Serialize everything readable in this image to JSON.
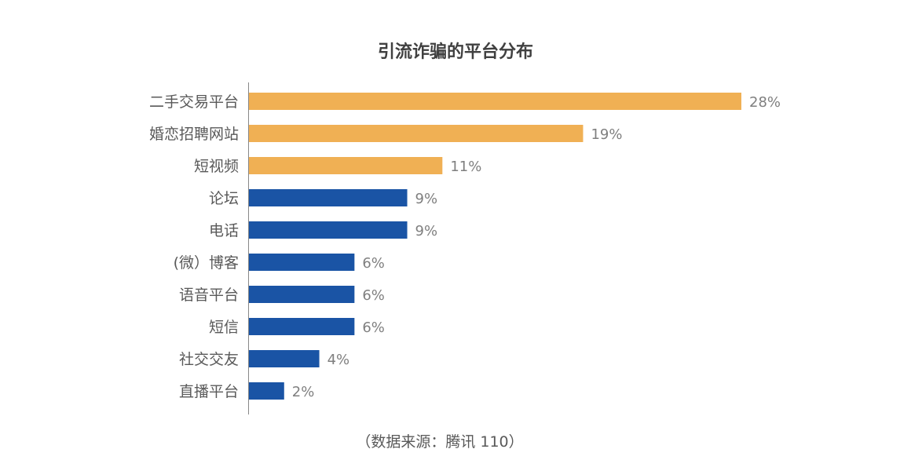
{
  "chart_data": {
    "type": "bar",
    "orientation": "horizontal",
    "title": "引流诈骗的平台分布",
    "source_note": "（数据来源：腾讯 110）",
    "categories": [
      "二手交易平台",
      "婚恋招聘网站",
      "短视频",
      "论坛",
      "电话",
      "(微）博客",
      "语音平台",
      "短信",
      "社交交友",
      "直播平台"
    ],
    "values": [
      28,
      19,
      11,
      9,
      9,
      6,
      6,
      6,
      4,
      2
    ],
    "value_labels": [
      "28%",
      "19%",
      "11%",
      "9%",
      "9%",
      "6%",
      "6%",
      "6%",
      "4%",
      "2%"
    ],
    "unit": "%",
    "colors": [
      "#F0B054",
      "#F0B054",
      "#F0B054",
      "#1A54A5",
      "#1A54A5",
      "#1A54A5",
      "#1A54A5",
      "#1A54A5",
      "#1A54A5",
      "#1A54A5"
    ],
    "xlim": [
      0,
      28
    ],
    "grid": false,
    "legend": "none"
  }
}
